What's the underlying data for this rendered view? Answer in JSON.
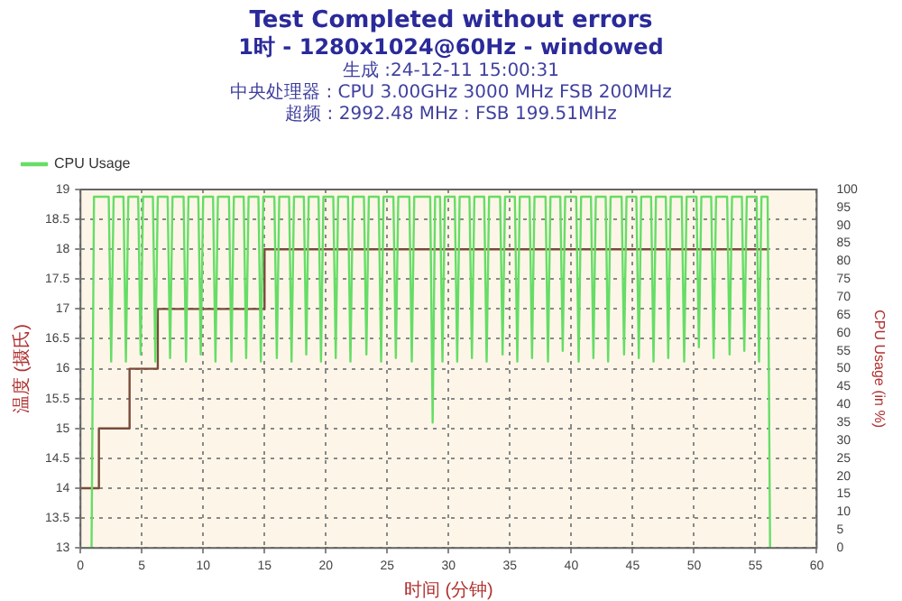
{
  "chart_data": {
    "type": "line",
    "title": "Test Completed without errors",
    "subtitle": "1时 - 1280x1024@60Hz - windowed",
    "annotations": [
      "生成 :24-12-11 15:00:31",
      "中央处理器 : CPU 3.00GHz 3000 MHz FSB 200MHz",
      "超频 : 2992.48 MHz : FSB 199.51MHz"
    ],
    "xlabel": "时间 (分钟)",
    "ylabel": "温度 (摄氏)",
    "y2label": "CPU Usage (in %)",
    "xlim": [
      0,
      60
    ],
    "xticks": [
      0,
      5,
      10,
      15,
      20,
      25,
      30,
      35,
      40,
      45,
      50,
      55,
      60
    ],
    "ylim": [
      13,
      19
    ],
    "yticks": [
      13,
      13.5,
      14,
      14.5,
      15,
      15.5,
      16,
      16.5,
      17,
      17.5,
      18,
      18.5,
      19
    ],
    "y2lim": [
      0,
      100
    ],
    "y2ticks": [
      0,
      5,
      10,
      15,
      20,
      25,
      30,
      35,
      40,
      45,
      50,
      55,
      60,
      65,
      70,
      75,
      80,
      85,
      90,
      95,
      100
    ],
    "grid": true,
    "legend": "top left",
    "marker": "none",
    "series": [
      {
        "name": "CPU Usage",
        "type": "line",
        "axis": "y2",
        "color": "#66dd66",
        "x": [
          0,
          0.9,
          1.1,
          2.3,
          2.5,
          2.7,
          3.5,
          3.7,
          3.9,
          4.7,
          4.9,
          5.1,
          5.9,
          6.1,
          6.3,
          7.1,
          7.3,
          7.5,
          8.4,
          8.6,
          8.8,
          9.6,
          9.8,
          10,
          10.8,
          11,
          11.2,
          12.1,
          12.3,
          12.5,
          13.3,
          13.5,
          13.7,
          14.5,
          14.7,
          14.9,
          15.8,
          16,
          16.2,
          17,
          17.2,
          17.4,
          18.2,
          18.4,
          18.6,
          19.4,
          19.6,
          19.8,
          20.6,
          20.8,
          21,
          21.8,
          22,
          22.2,
          23.1,
          23.3,
          23.5,
          24.3,
          24.5,
          24.7,
          25.5,
          25.7,
          25.9,
          26.8,
          27,
          27.2,
          28.5,
          28.7,
          28.9,
          29.3,
          29.5,
          29.7,
          30.5,
          30.7,
          30.9,
          31.7,
          31.9,
          32.1,
          32.9,
          33.1,
          33.3,
          34.2,
          34.4,
          34.6,
          35.4,
          35.6,
          35.8,
          36.6,
          36.8,
          37,
          37.9,
          38.1,
          38.3,
          39.1,
          39.3,
          39.5,
          40.4,
          40.6,
          40.8,
          41.6,
          41.8,
          42,
          42.8,
          43,
          43.2,
          44.1,
          44.3,
          44.5,
          45.3,
          45.5,
          45.7,
          46.5,
          46.7,
          46.9,
          47.7,
          47.9,
          48.1,
          49,
          49.2,
          49.4,
          50.2,
          50.4,
          50.6,
          51.4,
          51.6,
          51.8,
          52.7,
          52.9,
          53.1,
          53.9,
          54.1,
          54.3,
          55.1,
          55.3,
          55.5,
          56,
          56.2
        ],
        "values": [
          0,
          0,
          98,
          98,
          52,
          98,
          98,
          52,
          98,
          98,
          54,
          98,
          98,
          52,
          98,
          98,
          53,
          98,
          98,
          52,
          98,
          98,
          54,
          98,
          98,
          52,
          98,
          98,
          52,
          98,
          98,
          53,
          98,
          98,
          52,
          98,
          98,
          53,
          98,
          98,
          52,
          98,
          98,
          54,
          98,
          98,
          52,
          98,
          98,
          53,
          98,
          98,
          52,
          98,
          98,
          54,
          98,
          98,
          52,
          98,
          98,
          53,
          98,
          98,
          52,
          98,
          98,
          35,
          98,
          98,
          52,
          98,
          98,
          52,
          98,
          98,
          53,
          98,
          98,
          52,
          98,
          98,
          54,
          98,
          98,
          52,
          98,
          98,
          53,
          98,
          98,
          52,
          98,
          98,
          55,
          98,
          98,
          52,
          98,
          98,
          53,
          98,
          98,
          52,
          98,
          98,
          54,
          98,
          98,
          53,
          98,
          98,
          52,
          98,
          98,
          53,
          98,
          98,
          52,
          98,
          98,
          56,
          98,
          98,
          53,
          98,
          98,
          54,
          98,
          98,
          55,
          98,
          98,
          52,
          98,
          98,
          0
        ]
      },
      {
        "type": "step",
        "color": "#7a4a3a",
        "x": [
          0,
          1.5,
          4,
          6.3,
          15,
          56
        ],
        "values": [
          14,
          15,
          16,
          17,
          18,
          18
        ]
      }
    ]
  }
}
